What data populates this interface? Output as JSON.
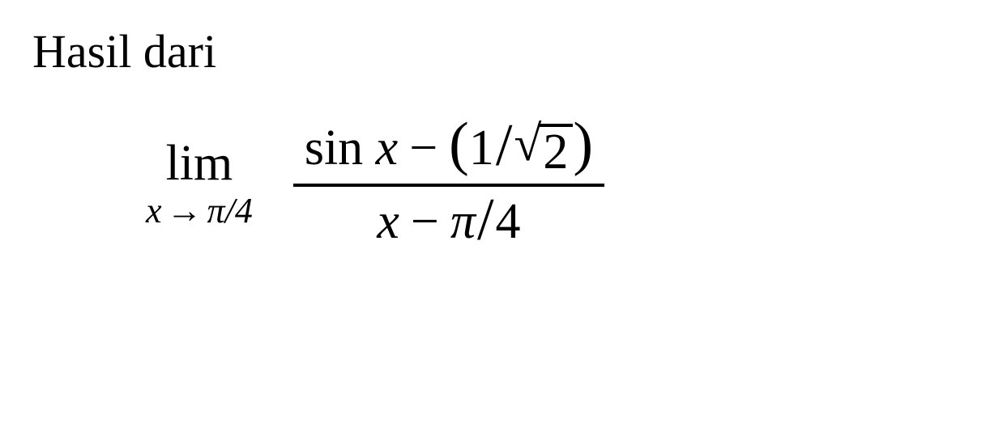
{
  "prompt": "Hasil dari",
  "limit": {
    "operator": "lim",
    "variable": "x",
    "arrow": "→",
    "target_pi": "π",
    "target_slash": "/",
    "target_denom": "4"
  },
  "numerator": {
    "fn": "sin",
    "var": "x",
    "minus": "−",
    "lparen": "(",
    "one": "1",
    "slash": "/",
    "sqrt_sym": "√",
    "sqrt_arg": "2",
    "rparen": ")"
  },
  "denominator": {
    "var": "x",
    "minus": "−",
    "pi": "π",
    "slash": "/",
    "four": "4"
  },
  "style": {
    "background_color": "#ffffff",
    "text_color": "#000000",
    "prompt_fontsize": 58,
    "math_fontsize": 62,
    "subscript_fontsize": 44,
    "line_thickness": 4,
    "font_family": "Times New Roman"
  }
}
